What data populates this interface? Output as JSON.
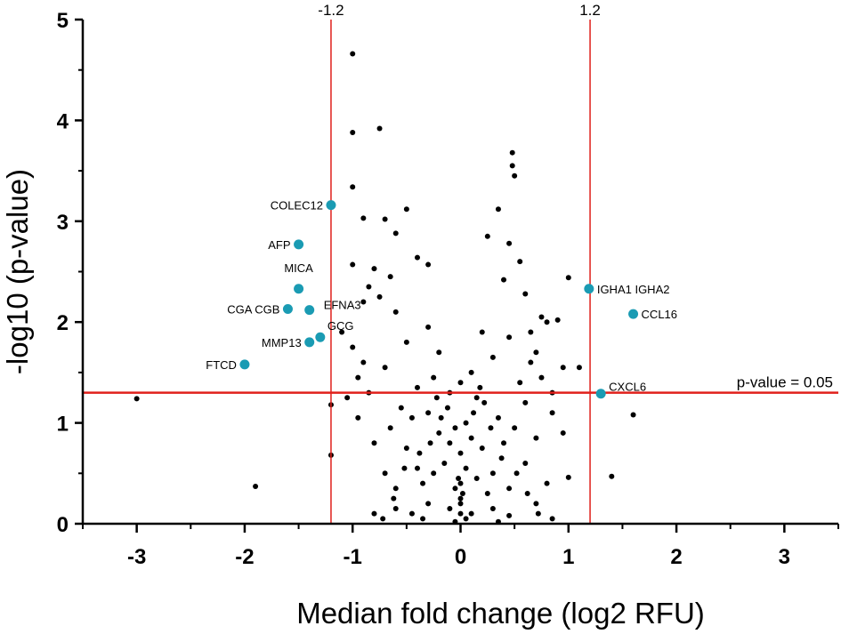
{
  "chart_data": {
    "type": "scatter",
    "xlabel": "Median fold change (log2 RFU)",
    "ylabel": "-log10 (p-value)",
    "xlim": [
      -3.5,
      3.5
    ],
    "ylim": [
      0,
      5
    ],
    "xticks": [
      -3,
      -2,
      -1,
      0,
      1,
      2,
      3
    ],
    "yticks": [
      0,
      1,
      2,
      3,
      4,
      5
    ],
    "x_tick_labels": [
      "-3",
      "-2",
      "-1",
      "0",
      "1",
      "2",
      "3"
    ],
    "y_tick_labels": [
      "0",
      "1",
      "2",
      "3",
      "4",
      "5"
    ],
    "grid": false,
    "threshold_lines": {
      "vertical": [
        {
          "x": -1.2,
          "label": "-1.2",
          "color": "#e0201b"
        },
        {
          "x": 1.2,
          "label": "1.2",
          "color": "#e0201b"
        }
      ],
      "horizontal": [
        {
          "y": 1.3,
          "label": "p-value = 0.05",
          "color": "#e0201b"
        }
      ]
    },
    "colors": {
      "background_points": "#000000",
      "highlighted_points": "#1a9bb3",
      "threshold": "#e0201b"
    },
    "highlighted": [
      {
        "label": "COLEC12",
        "x": -1.2,
        "y": 3.16
      },
      {
        "label": "AFP",
        "x": -1.5,
        "y": 2.77
      },
      {
        "label": "MICA",
        "x": -1.5,
        "y": 2.33
      },
      {
        "label": "CGA CGB",
        "x": -1.6,
        "y": 2.13
      },
      {
        "label": "EFNA3",
        "x": -1.4,
        "y": 2.12
      },
      {
        "label": "GCG",
        "x": -1.3,
        "y": 1.85
      },
      {
        "label": "MMP13",
        "x": -1.4,
        "y": 1.8
      },
      {
        "label": "FTCD",
        "x": -2.0,
        "y": 1.58
      },
      {
        "label": "IGHA1 IGHA2",
        "x": 1.19,
        "y": 2.33
      },
      {
        "label": "CCL16",
        "x": 1.6,
        "y": 2.08
      },
      {
        "label": "CXCL6",
        "x": 1.3,
        "y": 1.29
      }
    ],
    "points": [
      [
        -3.0,
        1.24
      ],
      [
        -1.9,
        0.37
      ],
      [
        -1.2,
        1.18
      ],
      [
        -1.2,
        0.68
      ],
      [
        -1.0,
        4.66
      ],
      [
        -1.0,
        3.88
      ],
      [
        -0.75,
        3.92
      ],
      [
        -1.0,
        3.34
      ],
      [
        -1.0,
        2.57
      ],
      [
        -0.9,
        3.03
      ],
      [
        -0.7,
        3.02
      ],
      [
        -0.5,
        3.12
      ],
      [
        -0.6,
        2.88
      ],
      [
        -0.4,
        2.64
      ],
      [
        -0.3,
        2.57
      ],
      [
        -0.8,
        2.53
      ],
      [
        0.48,
        3.68
      ],
      [
        0.48,
        3.55
      ],
      [
        0.5,
        3.45
      ],
      [
        0.35,
        3.12
      ],
      [
        0.25,
        2.85
      ],
      [
        0.45,
        2.78
      ],
      [
        0.55,
        2.6
      ],
      [
        0.4,
        2.42
      ],
      [
        0.6,
        2.28
      ],
      [
        0.8,
        2.0
      ],
      [
        0.75,
        2.05
      ],
      [
        1.0,
        2.44
      ],
      [
        0.9,
        2.02
      ],
      [
        1.1,
        1.55
      ],
      [
        0.7,
        1.7
      ],
      [
        0.65,
        1.6
      ],
      [
        1.0,
        0.46
      ],
      [
        1.4,
        0.47
      ],
      [
        1.6,
        1.08
      ],
      [
        0.85,
        1.1
      ],
      [
        0.95,
        0.9
      ],
      [
        -1.1,
        1.9
      ],
      [
        -1.0,
        1.75
      ],
      [
        -0.9,
        2.2
      ],
      [
        -0.95,
        1.45
      ],
      [
        -0.85,
        1.3
      ],
      [
        -0.6,
        2.1
      ],
      [
        -0.5,
        1.8
      ],
      [
        -0.7,
        1.55
      ],
      [
        -0.3,
        1.95
      ],
      [
        -0.2,
        1.7
      ],
      [
        0.2,
        1.9
      ],
      [
        0.3,
        1.65
      ],
      [
        0.45,
        1.85
      ],
      [
        0.55,
        1.4
      ],
      [
        0.6,
        1.2
      ],
      [
        -0.4,
        1.35
      ],
      [
        -0.25,
        1.45
      ],
      [
        0.1,
        1.5
      ],
      [
        0.0,
        1.4
      ],
      [
        -0.1,
        1.3
      ],
      [
        0.15,
        1.25
      ],
      [
        -0.55,
        1.15
      ],
      [
        -0.45,
        1.05
      ],
      [
        -0.3,
        1.1
      ],
      [
        0.35,
        1.05
      ],
      [
        0.5,
        0.95
      ],
      [
        0.7,
        0.85
      ],
      [
        -0.65,
        0.95
      ],
      [
        -0.8,
        0.8
      ],
      [
        -0.5,
        0.75
      ],
      [
        0.4,
        0.8
      ],
      [
        0.6,
        0.6
      ],
      [
        0.8,
        0.4
      ],
      [
        -0.7,
        0.5
      ],
      [
        -0.6,
        0.35
      ],
      [
        -0.4,
        0.55
      ],
      [
        -0.35,
        0.4
      ],
      [
        0.3,
        0.5
      ],
      [
        0.45,
        0.35
      ],
      [
        0.7,
        0.2
      ],
      [
        0.85,
        0.05
      ],
      [
        -0.8,
        0.1
      ],
      [
        -0.6,
        0.15
      ],
      [
        -0.2,
        0.9
      ],
      [
        -0.1,
        0.8
      ],
      [
        0.0,
        0.7
      ],
      [
        0.1,
        0.85
      ],
      [
        0.2,
        0.75
      ],
      [
        -0.15,
        0.6
      ],
      [
        0.05,
        0.55
      ],
      [
        0.15,
        0.45
      ],
      [
        -0.25,
        0.5
      ],
      [
        0.25,
        0.3
      ],
      [
        -0.05,
        0.35
      ],
      [
        0.0,
        0.25
      ],
      [
        -0.1,
        0.15
      ],
      [
        0.1,
        0.1
      ],
      [
        0.05,
        0.05
      ],
      [
        -0.05,
        0.02
      ],
      [
        0.0,
        0.4
      ],
      [
        0.0,
        0.2
      ],
      [
        0.0,
        0.1
      ],
      [
        0.02,
        0.3
      ],
      [
        -0.02,
        0.45
      ],
      [
        -0.3,
        0.2
      ],
      [
        0.3,
        0.15
      ],
      [
        -0.45,
        0.1
      ],
      [
        0.45,
        0.08
      ],
      [
        -0.35,
        0.05
      ],
      [
        0.35,
        0.02
      ],
      [
        0.12,
        1.1
      ],
      [
        -0.12,
        1.15
      ],
      [
        0.22,
        1.2
      ],
      [
        -0.22,
        1.25
      ],
      [
        0.18,
        1.35
      ],
      [
        -0.18,
        1.05
      ],
      [
        0.05,
        1.0
      ],
      [
        -0.05,
        0.95
      ],
      [
        0.28,
        0.95
      ],
      [
        -0.28,
        0.8
      ],
      [
        0.38,
        0.65
      ],
      [
        -0.38,
        0.7
      ],
      [
        0.52,
        0.5
      ],
      [
        -0.52,
        0.55
      ],
      [
        0.62,
        0.3
      ],
      [
        -0.62,
        0.25
      ],
      [
        0.72,
        0.1
      ],
      [
        -0.72,
        0.05
      ],
      [
        -0.85,
        2.35
      ],
      [
        -0.75,
        2.25
      ],
      [
        -0.65,
        2.45
      ],
      [
        -0.9,
        1.6
      ],
      [
        -1.05,
        1.25
      ],
      [
        -0.95,
        1.05
      ],
      [
        0.65,
        1.9
      ],
      [
        0.75,
        1.45
      ],
      [
        0.85,
        1.3
      ],
      [
        0.95,
        1.55
      ]
    ]
  }
}
